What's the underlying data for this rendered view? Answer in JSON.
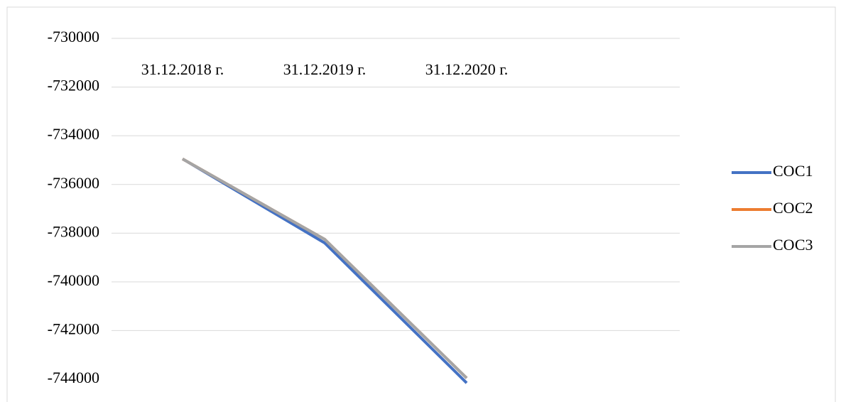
{
  "chart_data": {
    "type": "line",
    "categories": [
      "31.12.2018 г.",
      "31.12.2019 г.",
      "31.12.2020 г."
    ],
    "series": [
      {
        "name": "СОС1",
        "color": "#4472c4",
        "values": [
          -734950,
          -738400,
          -744150
        ]
      },
      {
        "name": "СОС2",
        "color": "#ed7d31",
        "values": [
          -734950,
          -738250,
          -743950
        ]
      },
      {
        "name": "СОС3",
        "color": "#a5a5a5",
        "values": [
          -734950,
          -738250,
          -743950
        ]
      }
    ],
    "ylim": [
      -744000,
      -730000
    ],
    "yticks": [
      -744000,
      -742000,
      -740000,
      -738000,
      -736000,
      -734000,
      -732000,
      -730000
    ],
    "grid": true,
    "legend": "right"
  }
}
